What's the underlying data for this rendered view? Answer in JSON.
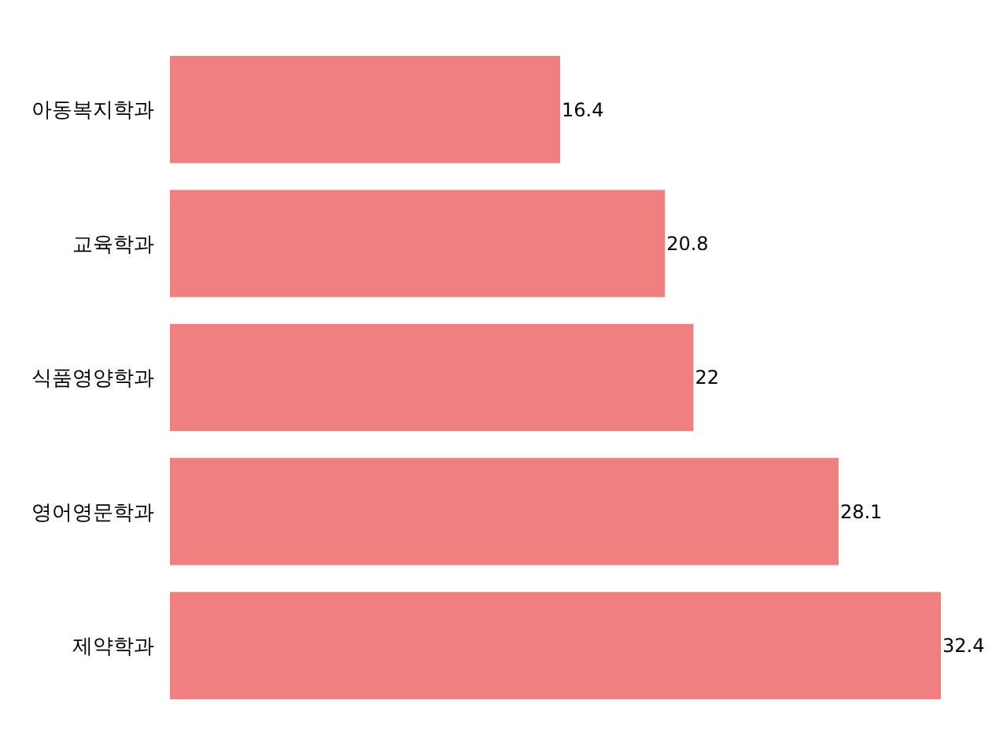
{
  "chart_data": {
    "type": "bar",
    "orientation": "horizontal",
    "categories": [
      "아동복지학과",
      "교육학과",
      "식품영양학과",
      "영어영문학과",
      "제약학과"
    ],
    "values": [
      16.4,
      20.8,
      22,
      28.1,
      32.4
    ],
    "color": "#f08080",
    "data_labels": true
  }
}
